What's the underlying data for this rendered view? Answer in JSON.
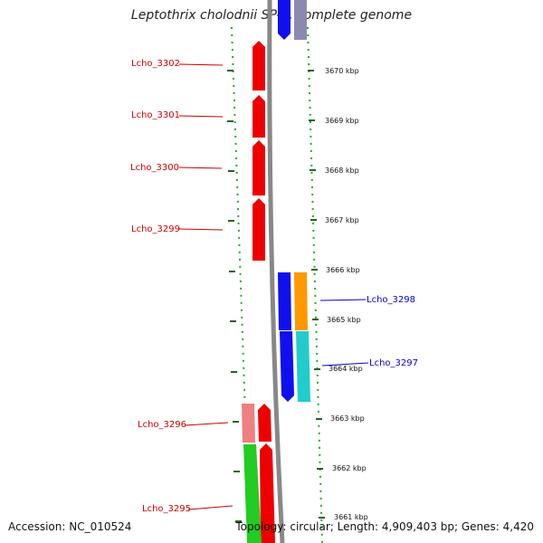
{
  "title": "Leptothrix cholodnii SP-6, complete genome",
  "accession": "Accession: NC_010524",
  "topology": "Topology: circular; Length: 4,909,403 bp; Genes: 4,420",
  "colors": {
    "forward": "#ee0000",
    "forward_light": "#ee8080",
    "reverse": "#1010ee",
    "reverse_grey": "#8a8ab0",
    "orange": "#ff9900",
    "cyan": "#20cccc",
    "green": "#22cc22",
    "backbone": "#888888",
    "tick": "#22aa22",
    "label_forward": "#cc0000",
    "label_reverse": "#0000cc"
  },
  "scale_ticks": [
    "3670 kbp",
    "3669 kbp",
    "3668 kbp",
    "3667 kbp",
    "3666 kbp",
    "3665 kbp",
    "3664 kbp",
    "3663 kbp",
    "3662 kbp",
    "3661 kbp"
  ],
  "gene_labels": [
    {
      "name": "Lcho_3302",
      "strand": "forward"
    },
    {
      "name": "Lcho_3301",
      "strand": "forward"
    },
    {
      "name": "Lcho_3300",
      "strand": "forward"
    },
    {
      "name": "Lcho_3299",
      "strand": "forward"
    },
    {
      "name": "Lcho_3298",
      "strand": "reverse"
    },
    {
      "name": "Lcho_3297",
      "strand": "reverse"
    },
    {
      "name": "Lcho_3296",
      "strand": "forward"
    },
    {
      "name": "Lcho_3295",
      "strand": "forward"
    }
  ]
}
